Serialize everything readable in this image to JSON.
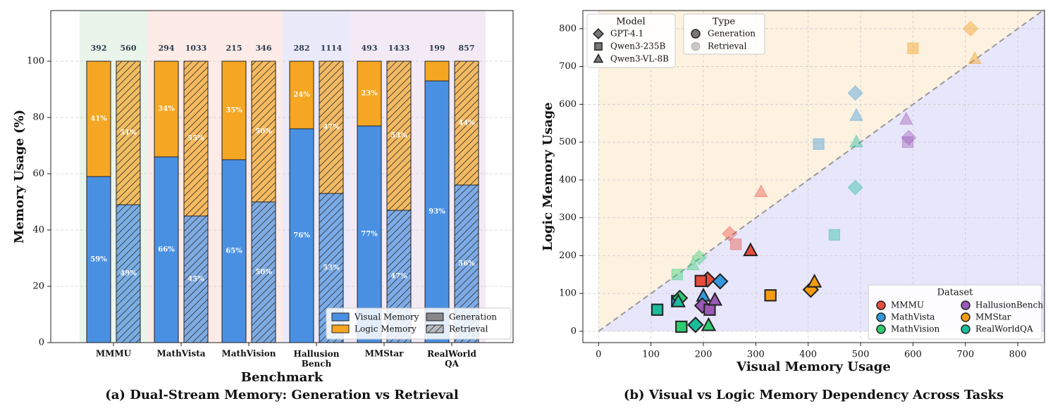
{
  "chart_data": [
    {
      "type": "bar",
      "stacked": true,
      "title": "(a) Dual-Stream Memory: Generation vs Retrieval",
      "xlabel": "Benchmark",
      "ylabel": "Memory Usage (%)",
      "categories": [
        "MMMU",
        "MathVista",
        "MathVision",
        "Hallusion\nBench",
        "MMStar",
        "RealWorld\nQA"
      ],
      "band_colors": [
        "#e9f4ea",
        "#fdebe7",
        "#fdebe7",
        "#ebeafb",
        "#f3eaf5",
        "#f3eaf5"
      ],
      "ylim": [
        0,
        118
      ],
      "yticks": [
        0,
        20,
        40,
        60,
        80,
        100
      ],
      "grid": true,
      "stacks": [
        {
          "name": "Generation",
          "hatch": false,
          "totals": [
            392,
            294,
            215,
            282,
            493,
            199
          ],
          "series": [
            {
              "name": "Visual Memory",
              "color": "#4a90e2",
              "values": [
                59,
                66,
                65,
                76,
                77,
                93
              ],
              "value_labels": [
                "59%",
                "66%",
                "65%",
                "76%",
                "77%",
                "93%"
              ]
            },
            {
              "name": "Logic Memory",
              "color": "#f5a623",
              "values": [
                41,
                34,
                35,
                24,
                23,
                7
              ],
              "value_labels": [
                "41%",
                "34%",
                "35%",
                "24%",
                "23%",
                null
              ]
            }
          ]
        },
        {
          "name": "Retrieval",
          "hatch": true,
          "totals": [
            560,
            1033,
            346,
            1114,
            1433,
            857
          ],
          "series": [
            {
              "name": "Visual Memory",
              "color": "#4a90e2",
              "values": [
                49,
                45,
                50,
                53,
                47,
                56
              ],
              "value_labels": [
                "49%",
                "45%",
                "50%",
                "53%",
                "47%",
                "56%"
              ]
            },
            {
              "name": "Logic Memory",
              "color": "#f5a623",
              "values": [
                51,
                55,
                50,
                47,
                53,
                44
              ],
              "value_labels": [
                "51%",
                "55%",
                "50%",
                "47%",
                "53%",
                "44%"
              ]
            }
          ]
        }
      ]
    },
    {
      "type": "scatter",
      "title": "(b) Visual vs Logic Memory Dependency Across Tasks",
      "xlabel": "Visual Memory Usage",
      "ylabel": "Logic Memory Usage",
      "xlim": [
        -30,
        851
      ],
      "ylim": [
        -30,
        848
      ],
      "xticks": [
        0,
        100,
        200,
        300,
        400,
        500,
        600,
        700,
        800
      ],
      "yticks": [
        0,
        100,
        200,
        300,
        400,
        500,
        600,
        700,
        800
      ],
      "grid": true,
      "model_legend_title": "Model",
      "type_legend_title": "Type",
      "dataset_legend_title": "Dataset",
      "models": [
        {
          "name": "GPT-4.1",
          "marker": "diamond"
        },
        {
          "name": "Qwen3-235B",
          "marker": "square"
        },
        {
          "name": "Qwen3-VL-8B",
          "marker": "triangle"
        }
      ],
      "types": [
        {
          "name": "Generation",
          "alpha": 1
        },
        {
          "name": "Retrieval",
          "alpha": 0.4
        }
      ],
      "series": [
        {
          "name": "MMMU",
          "color": "#e74c3c",
          "points": [
            {
              "model": "GPT-4.1",
              "type": "Generation",
              "x": 208,
              "y": 137
            },
            {
              "model": "Qwen3-235B",
              "type": "Generation",
              "x": 195,
              "y": 133
            },
            {
              "model": "Qwen3-VL-8B",
              "type": "Generation",
              "x": 290,
              "y": 213
            },
            {
              "model": "GPT-4.1",
              "type": "Retrieval",
              "x": 250,
              "y": 258
            },
            {
              "model": "Qwen3-235B",
              "type": "Retrieval",
              "x": 262,
              "y": 230
            },
            {
              "model": "Qwen3-VL-8B",
              "type": "Retrieval",
              "x": 310,
              "y": 368
            }
          ]
        },
        {
          "name": "MathVista",
          "color": "#3498db",
          "points": [
            {
              "model": "GPT-4.1",
              "type": "Generation",
              "x": 232,
              "y": 132
            },
            {
              "model": "Qwen3-235B",
              "type": "Generation",
              "x": 150,
              "y": 80
            },
            {
              "model": "Qwen3-VL-8B",
              "type": "Generation",
              "x": 200,
              "y": 93
            },
            {
              "model": "GPT-4.1",
              "type": "Retrieval",
              "x": 490,
              "y": 630
            },
            {
              "model": "Qwen3-235B",
              "type": "Retrieval",
              "x": 420,
              "y": 495
            },
            {
              "model": "Qwen3-VL-8B",
              "type": "Retrieval",
              "x": 492,
              "y": 570
            }
          ]
        },
        {
          "name": "MathVision",
          "color": "#2ecc71",
          "points": [
            {
              "model": "GPT-4.1",
              "type": "Generation",
              "x": 155,
              "y": 88
            },
            {
              "model": "Qwen3-235B",
              "type": "Generation",
              "x": 158,
              "y": 12
            },
            {
              "model": "Qwen3-VL-8B",
              "type": "Generation",
              "x": 210,
              "y": 15
            },
            {
              "model": "GPT-4.1",
              "type": "Retrieval",
              "x": 192,
              "y": 195
            },
            {
              "model": "Qwen3-235B",
              "type": "Retrieval",
              "x": 150,
              "y": 150
            },
            {
              "model": "Qwen3-VL-8B",
              "type": "Retrieval",
              "x": 180,
              "y": 175
            }
          ]
        },
        {
          "name": "HallusionBench",
          "color": "#9b59b6",
          "points": [
            {
              "model": "GPT-4.1",
              "type": "Generation",
              "x": 198,
              "y": 68
            },
            {
              "model": "Qwen3-235B",
              "type": "Generation",
              "x": 212,
              "y": 57
            },
            {
              "model": "Qwen3-VL-8B",
              "type": "Generation",
              "x": 222,
              "y": 82
            },
            {
              "model": "GPT-4.1",
              "type": "Retrieval",
              "x": 592,
              "y": 512
            },
            {
              "model": "Qwen3-235B",
              "type": "Retrieval",
              "x": 590,
              "y": 500
            },
            {
              "model": "Qwen3-VL-8B",
              "type": "Retrieval",
              "x": 587,
              "y": 560
            }
          ]
        },
        {
          "name": "MMStar",
          "color": "#f39c12",
          "points": [
            {
              "model": "GPT-4.1",
              "type": "Generation",
              "x": 405,
              "y": 110
            },
            {
              "model": "Qwen3-235B",
              "type": "Generation",
              "x": 328,
              "y": 95
            },
            {
              "model": "Qwen3-VL-8B",
              "type": "Generation",
              "x": 412,
              "y": 130
            },
            {
              "model": "GPT-4.1",
              "type": "Retrieval",
              "x": 710,
              "y": 800
            },
            {
              "model": "Qwen3-235B",
              "type": "Retrieval",
              "x": 600,
              "y": 748
            },
            {
              "model": "Qwen3-VL-8B",
              "type": "Retrieval",
              "x": 718,
              "y": 720
            }
          ]
        },
        {
          "name": "RealWorldQA",
          "color": "#1abc9c",
          "points": [
            {
              "model": "GPT-4.1",
              "type": "Generation",
              "x": 185,
              "y": 17
            },
            {
              "model": "Qwen3-235B",
              "type": "Generation",
              "x": 112,
              "y": 57
            },
            {
              "model": "Qwen3-VL-8B",
              "type": "Generation",
              "x": 152,
              "y": 78
            },
            {
              "model": "GPT-4.1",
              "type": "Retrieval",
              "x": 490,
              "y": 380
            },
            {
              "model": "Qwen3-235B",
              "type": "Retrieval",
              "x": 450,
              "y": 255
            },
            {
              "model": "Qwen3-VL-8B",
              "type": "Retrieval",
              "x": 492,
              "y": 500
            }
          ]
        }
      ]
    }
  ]
}
